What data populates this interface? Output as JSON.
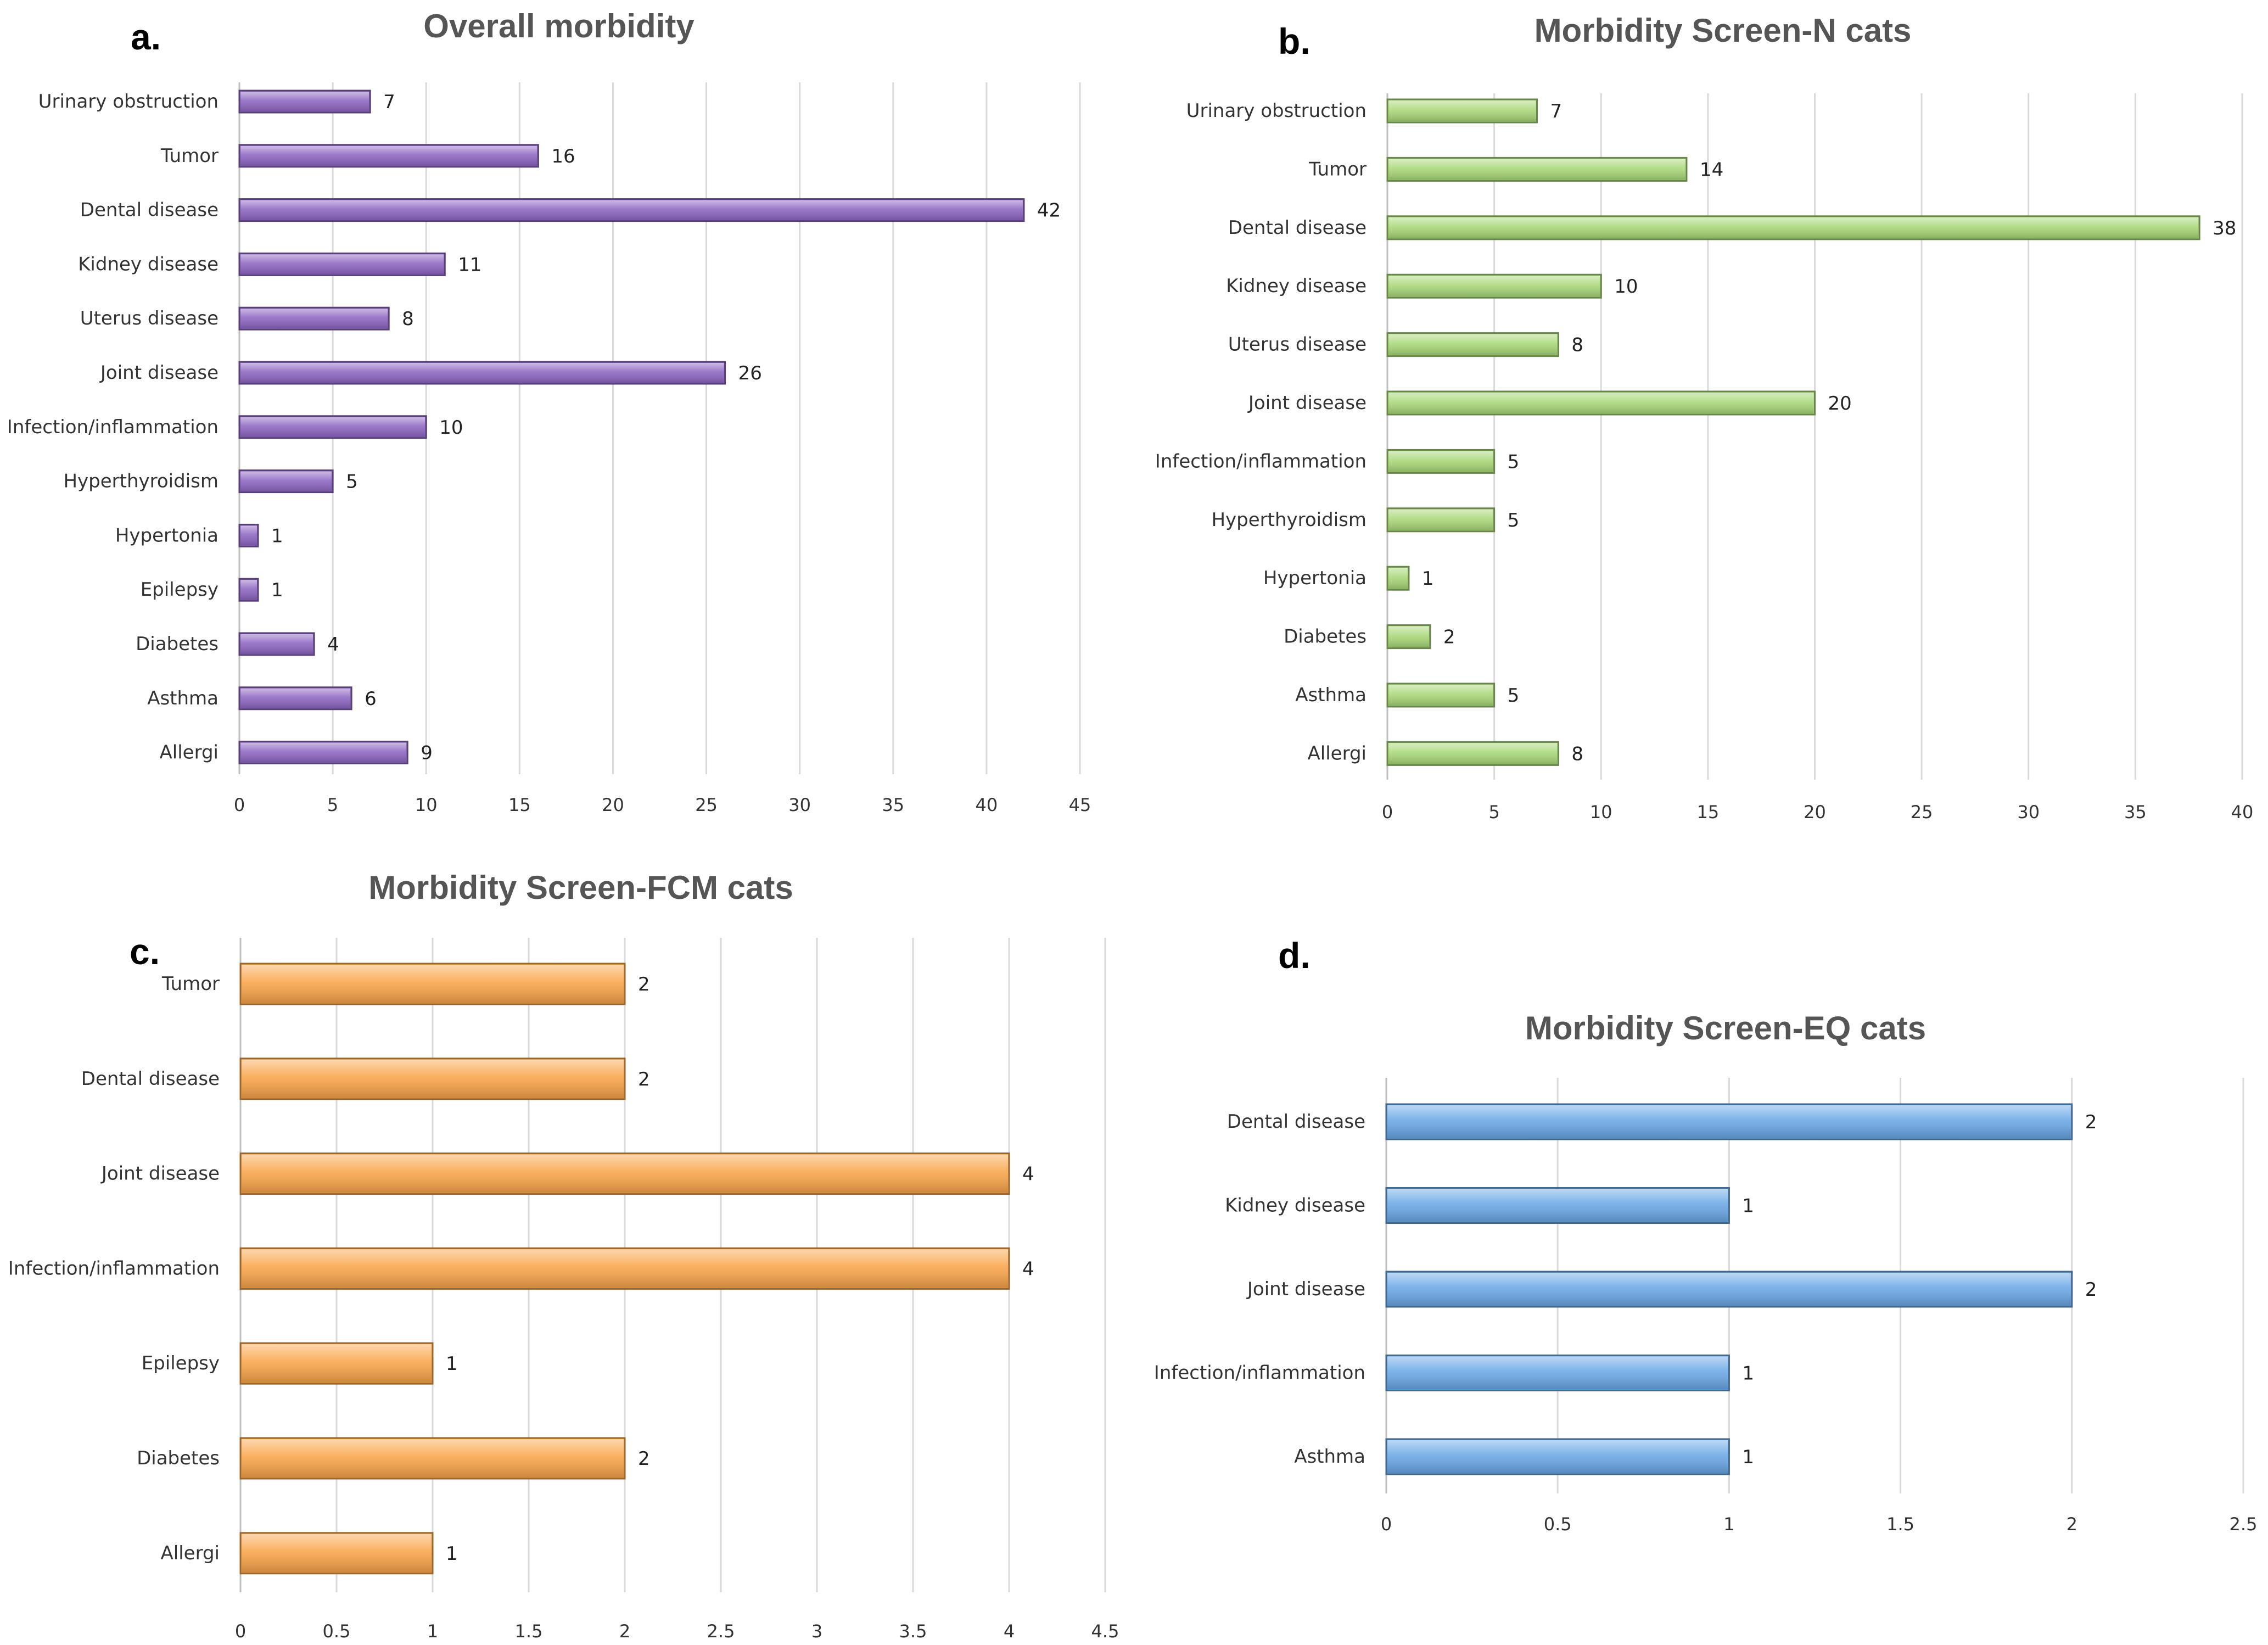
{
  "chart_data": [
    {
      "id": "a",
      "panel_label": "a.",
      "type": "bar",
      "orientation": "horizontal",
      "title": "Overall morbidity",
      "color": "#8e66c2",
      "categories": [
        "Urinary obstruction",
        "Tumor",
        "Dental disease",
        "Kidney disease",
        "Uterus disease",
        "Joint disease",
        "Infection/inflammation",
        "Hyperthyroidism",
        "Hypertonia",
        "Epilepsy",
        "Diabetes",
        "Asthma",
        "Allergi"
      ],
      "values": [
        7,
        16,
        42,
        11,
        8,
        26,
        10,
        5,
        1,
        1,
        4,
        6,
        9
      ],
      "xlim": [
        0,
        45
      ],
      "xticks": [
        "0",
        "5",
        "10",
        "15",
        "20",
        "25",
        "30",
        "35",
        "40",
        "45"
      ],
      "grid": true,
      "xlabel": "",
      "ylabel": ""
    },
    {
      "id": "b",
      "panel_label": "b.",
      "type": "bar",
      "orientation": "horizontal",
      "title": "Morbidity Screen-N cats",
      "color": "#a8d878",
      "categories": [
        "Urinary obstruction",
        "Tumor",
        "Dental disease",
        "Kidney disease",
        "Uterus disease",
        "Joint disease",
        "Infection/inflammation",
        "Hyperthyroidism",
        "Hypertonia",
        "Diabetes",
        "Asthma",
        "Allergi"
      ],
      "values": [
        7,
        14,
        38,
        10,
        8,
        20,
        5,
        5,
        1,
        2,
        5,
        8
      ],
      "xlim": [
        0,
        40
      ],
      "xticks": [
        "0",
        "5",
        "10",
        "15",
        "20",
        "25",
        "30",
        "35",
        "40"
      ],
      "grid": true,
      "xlabel": "",
      "ylabel": ""
    },
    {
      "id": "c",
      "panel_label": "c.",
      "type": "bar",
      "orientation": "horizontal",
      "title": "Morbidity Screen-FCM cats",
      "color": "#f9a54a",
      "categories": [
        "Tumor",
        "Dental disease",
        "Joint disease",
        "Infection/inflammation",
        "Epilepsy",
        "Diabetes",
        "Allergi"
      ],
      "values": [
        2,
        2,
        4,
        4,
        1,
        2,
        1
      ],
      "xlim": [
        0,
        4.5
      ],
      "xticks": [
        "0",
        "0.5",
        "1",
        "1.5",
        "2",
        "2.5",
        "3",
        "3.5",
        "4",
        "4.5"
      ],
      "grid": true,
      "xlabel": "",
      "ylabel": ""
    },
    {
      "id": "d",
      "panel_label": "d.",
      "type": "bar",
      "orientation": "horizontal",
      "title": "Morbidity Screen-EQ cats",
      "color": "#6aa8e6",
      "categories": [
        "Dental disease",
        "Kidney disease",
        "Joint disease",
        "Infection/inflammation",
        "Asthma"
      ],
      "values": [
        2,
        1,
        2,
        1,
        1
      ],
      "xlim": [
        0,
        2.5
      ],
      "xticks": [
        "0",
        "0.5",
        "1",
        "1.5",
        "2",
        "2.5"
      ],
      "grid": true,
      "xlabel": "",
      "ylabel": ""
    }
  ]
}
